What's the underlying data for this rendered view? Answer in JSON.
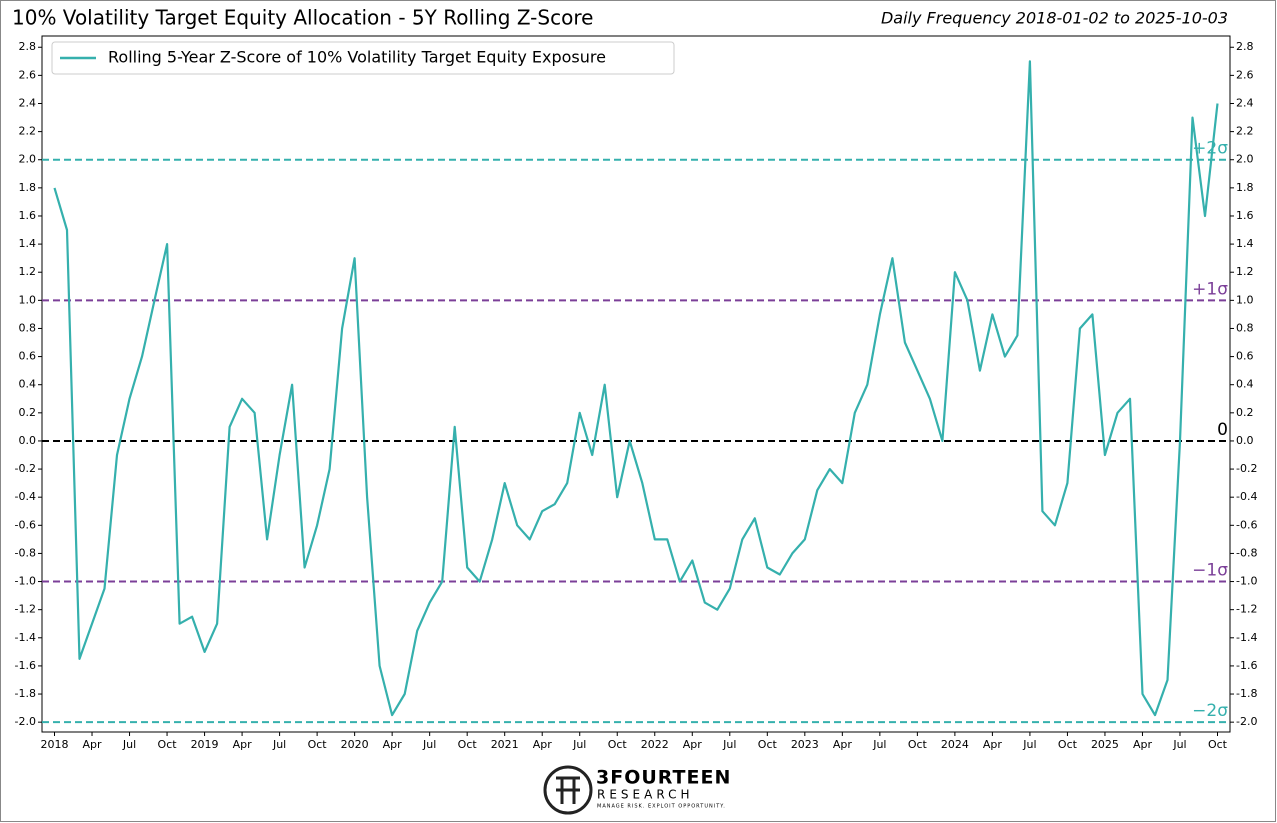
{
  "chart_data": {
    "type": "line",
    "title": "10% Volatility Target Equity Allocation - 5Y Rolling Z-Score",
    "subtitle": "Daily Frequency 2018-01-02 to 2025-10-03",
    "x": [
      "2018-01",
      "2018-02",
      "2018-03",
      "2018-04",
      "2018-05",
      "2018-06",
      "2018-07",
      "2018-08",
      "2018-09",
      "2018-10",
      "2018-11",
      "2018-12",
      "2019-01",
      "2019-02",
      "2019-03",
      "2019-04",
      "2019-05",
      "2019-06",
      "2019-07",
      "2019-08",
      "2019-09",
      "2019-10",
      "2019-11",
      "2019-12",
      "2020-01",
      "2020-02",
      "2020-03",
      "2020-04",
      "2020-05",
      "2020-06",
      "2020-07",
      "2020-08",
      "2020-09",
      "2020-10",
      "2020-11",
      "2020-12",
      "2021-01",
      "2021-02",
      "2021-03",
      "2021-04",
      "2021-05",
      "2021-06",
      "2021-07",
      "2021-08",
      "2021-09",
      "2021-10",
      "2021-11",
      "2021-12",
      "2022-01",
      "2022-02",
      "2022-03",
      "2022-04",
      "2022-05",
      "2022-06",
      "2022-07",
      "2022-08",
      "2022-09",
      "2022-10",
      "2022-11",
      "2022-12",
      "2023-01",
      "2023-02",
      "2023-03",
      "2023-04",
      "2023-05",
      "2023-06",
      "2023-07",
      "2023-08",
      "2023-09",
      "2023-10",
      "2023-11",
      "2023-12",
      "2024-01",
      "2024-02",
      "2024-03",
      "2024-04",
      "2024-05",
      "2024-06",
      "2024-07",
      "2024-08",
      "2024-09",
      "2024-10",
      "2024-11",
      "2024-12",
      "2025-01",
      "2025-02",
      "2025-03",
      "2025-04",
      "2025-05",
      "2025-06",
      "2025-07",
      "2025-08",
      "2025-09",
      "2025-10"
    ],
    "series": [
      {
        "name": "Rolling 5-Year Z-Score of 10% Volatility Target Equity Exposure",
        "color": "#35b0ad",
        "values": [
          1.8,
          1.5,
          -1.55,
          -1.3,
          -1.05,
          -0.1,
          0.3,
          0.6,
          1.0,
          1.4,
          -1.3,
          -1.25,
          -1.5,
          -1.3,
          0.1,
          0.3,
          0.2,
          -0.7,
          -0.1,
          0.4,
          -0.9,
          -0.6,
          -0.2,
          0.8,
          1.3,
          -0.4,
          -1.6,
          -1.95,
          -1.8,
          -1.35,
          -1.15,
          -1.0,
          0.1,
          -0.9,
          -1.0,
          -0.7,
          -0.3,
          -0.6,
          -0.7,
          -0.5,
          -0.45,
          -0.3,
          0.2,
          -0.1,
          0.4,
          -0.4,
          0.0,
          -0.3,
          -0.7,
          -0.7,
          -1.0,
          -0.85,
          -1.15,
          -1.2,
          -1.05,
          -0.7,
          -0.55,
          -0.9,
          -0.95,
          -0.8,
          -0.7,
          -0.35,
          -0.2,
          -0.3,
          0.2,
          0.4,
          0.9,
          1.3,
          0.7,
          0.5,
          0.3,
          0.0,
          1.2,
          1.0,
          0.5,
          0.9,
          0.6,
          0.75,
          2.7,
          -0.5,
          -0.6,
          -0.3,
          0.8,
          0.9,
          -0.1,
          0.2,
          0.3,
          -1.8,
          -1.95,
          -1.7,
          0.0,
          2.3,
          1.6,
          2.4
        ]
      }
    ],
    "xlim": [
      "2017-12",
      "2025-11"
    ],
    "ylim": [
      -2.07,
      2.88
    ],
    "xticks": [
      {
        "value": "2018-01",
        "label": "2018"
      },
      {
        "value": "2018-04",
        "label": "Apr"
      },
      {
        "value": "2018-07",
        "label": "Jul"
      },
      {
        "value": "2018-10",
        "label": "Oct"
      },
      {
        "value": "2019-01",
        "label": "2019"
      },
      {
        "value": "2019-04",
        "label": "Apr"
      },
      {
        "value": "2019-07",
        "label": "Jul"
      },
      {
        "value": "2019-10",
        "label": "Oct"
      },
      {
        "value": "2020-01",
        "label": "2020"
      },
      {
        "value": "2020-04",
        "label": "Apr"
      },
      {
        "value": "2020-07",
        "label": "Jul"
      },
      {
        "value": "2020-10",
        "label": "Oct"
      },
      {
        "value": "2021-01",
        "label": "2021"
      },
      {
        "value": "2021-04",
        "label": "Apr"
      },
      {
        "value": "2021-07",
        "label": "Jul"
      },
      {
        "value": "2021-10",
        "label": "Oct"
      },
      {
        "value": "2022-01",
        "label": "2022"
      },
      {
        "value": "2022-04",
        "label": "Apr"
      },
      {
        "value": "2022-07",
        "label": "Jul"
      },
      {
        "value": "2022-10",
        "label": "Oct"
      },
      {
        "value": "2023-01",
        "label": "2023"
      },
      {
        "value": "2023-04",
        "label": "Apr"
      },
      {
        "value": "2023-07",
        "label": "Jul"
      },
      {
        "value": "2023-10",
        "label": "Oct"
      },
      {
        "value": "2024-01",
        "label": "2024"
      },
      {
        "value": "2024-04",
        "label": "Apr"
      },
      {
        "value": "2024-07",
        "label": "Jul"
      },
      {
        "value": "2024-10",
        "label": "Oct"
      },
      {
        "value": "2025-01",
        "label": "2025"
      },
      {
        "value": "2025-04",
        "label": "Apr"
      },
      {
        "value": "2025-07",
        "label": "Jul"
      },
      {
        "value": "2025-10",
        "label": "Oct"
      }
    ],
    "yticks": [
      {
        "value": -2,
        "label": "-2.0"
      },
      {
        "value": -1.8,
        "label": "-1.8"
      },
      {
        "value": -1.6,
        "label": "-1.6"
      },
      {
        "value": -1.4,
        "label": "-1.4"
      },
      {
        "value": -1.2,
        "label": "-1.2"
      },
      {
        "value": -1,
        "label": "-1.0"
      },
      {
        "value": -0.8,
        "label": "-0.8"
      },
      {
        "value": -0.6,
        "label": "-0.6"
      },
      {
        "value": -0.4,
        "label": "-0.4"
      },
      {
        "value": -0.2,
        "label": "-0.2"
      },
      {
        "value": 0,
        "label": "0.0"
      },
      0.2,
      0.4,
      0.6,
      0.8,
      {
        "value": 1,
        "label": "1.0"
      },
      1.2,
      1.4,
      1.6,
      1.8,
      {
        "value": 2,
        "label": "2.0"
      },
      2.2,
      2.4,
      2.6,
      2.8
    ],
    "reference_lines": [
      {
        "y": 2,
        "label": "+2σ",
        "color": "#35b0ad"
      },
      {
        "y": 1,
        "label": "+1σ",
        "color": "#7b3f98"
      },
      {
        "y": 0,
        "label": "0",
        "color": "#000000"
      },
      {
        "y": -1,
        "label": "−1σ",
        "color": "#7b3f98"
      },
      {
        "y": -2,
        "label": "−2σ",
        "color": "#35b0ad"
      }
    ],
    "legend": "upper left",
    "logo": {
      "name": "3FOURTEEN",
      "sub": "RESEARCH",
      "tagline": "MANAGE RISK. EXPLOIT OPPORTUNITY."
    }
  }
}
